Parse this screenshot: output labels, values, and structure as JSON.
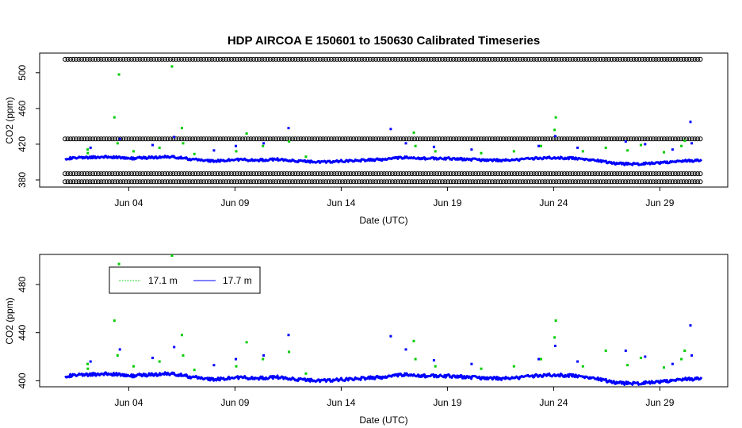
{
  "chart_data": [
    {
      "type": "scatter",
      "title": "HDP   AIRCOA  E   150601  to  150630   Calibrated Timeseries",
      "xlabel": "Date (UTC)",
      "ylabel": "CO2 (ppm)",
      "xlim": [
        "2015-06-01",
        "2015-07-01"
      ],
      "ylim": [
        372,
        522
      ],
      "x_ticks": [
        {
          "date": "2015-06-04",
          "label": "Jun 04"
        },
        {
          "date": "2015-06-09",
          "label": "Jun 09"
        },
        {
          "date": "2015-06-14",
          "label": "Jun 14"
        },
        {
          "date": "2015-06-19",
          "label": "Jun 19"
        },
        {
          "date": "2015-06-24",
          "label": "Jun 24"
        },
        {
          "date": "2015-06-29",
          "label": "Jun 29"
        }
      ],
      "y_ticks": [
        380,
        420,
        460,
        500
      ],
      "reference_bands": [
        {
          "color": "#000000",
          "y": 515
        },
        {
          "color": "#000000",
          "y": 426
        },
        {
          "color": "#000000",
          "y": 387
        },
        {
          "color": "#000000",
          "y": 378
        }
      ],
      "series": [
        {
          "color": "#00cc00",
          "points": [
            [
              "2015-06-02",
              410
            ],
            [
              "2015-06-02",
              414
            ],
            [
              "2015-06-03",
              498
            ],
            [
              "2015-06-03",
              450
            ],
            [
              "2015-06-03",
              421
            ],
            [
              "2015-06-04",
              412
            ],
            [
              "2015-06-05",
              416
            ],
            [
              "2015-06-06",
              507
            ],
            [
              "2015-06-06",
              438
            ],
            [
              "2015-06-06",
              421
            ],
            [
              "2015-06-07",
              409
            ],
            [
              "2015-06-09",
              432
            ],
            [
              "2015-06-09",
              412
            ],
            [
              "2015-06-10",
              418
            ],
            [
              "2015-06-11",
              423
            ],
            [
              "2015-06-12",
              406
            ],
            [
              "2015-06-17",
              433
            ],
            [
              "2015-06-17",
              418
            ],
            [
              "2015-06-18",
              412
            ],
            [
              "2015-06-20",
              410
            ],
            [
              "2015-06-22",
              412
            ],
            [
              "2015-06-23",
              418
            ],
            [
              "2015-06-24",
              450
            ],
            [
              "2015-06-24",
              436
            ],
            [
              "2015-06-25",
              412
            ],
            [
              "2015-06-26",
              416
            ],
            [
              "2015-06-27",
              413
            ],
            [
              "2015-06-28",
              419
            ],
            [
              "2015-06-29",
              411
            ],
            [
              "2015-06-30",
              424
            ],
            [
              "2015-06-30",
              418
            ]
          ]
        },
        {
          "color": "#0000ff",
          "points": [
            [
              "2015-06-02",
              416
            ],
            [
              "2015-06-03",
              426
            ],
            [
              "2015-06-05",
              419
            ],
            [
              "2015-06-06",
              428
            ],
            [
              "2015-06-08",
              413
            ],
            [
              "2015-06-09",
              418
            ],
            [
              "2015-06-10",
              421
            ],
            [
              "2015-06-11",
              438
            ],
            [
              "2015-06-16",
              437
            ],
            [
              "2015-06-17",
              421
            ],
            [
              "2015-06-18",
              417
            ],
            [
              "2015-06-20",
              414
            ],
            [
              "2015-06-23",
              418
            ],
            [
              "2015-06-24",
              429
            ],
            [
              "2015-06-25",
              416
            ],
            [
              "2015-06-27",
              423
            ],
            [
              "2015-06-28",
              420
            ],
            [
              "2015-06-29",
              414
            ],
            [
              "2015-06-30",
              445
            ],
            [
              "2015-06-30",
              421
            ]
          ]
        },
        {
          "color": "#0000ff",
          "baseline": [
            [
              "2015-06-01",
              404
            ],
            [
              "2015-06-02",
              405
            ],
            [
              "2015-06-03",
              406
            ],
            [
              "2015-06-04",
              404
            ],
            [
              "2015-06-05",
              405
            ],
            [
              "2015-06-06",
              406
            ],
            [
              "2015-06-07",
              403
            ],
            [
              "2015-06-08",
              401
            ],
            [
              "2015-06-09",
              403
            ],
            [
              "2015-06-10",
              402
            ],
            [
              "2015-06-11",
              403
            ],
            [
              "2015-06-12",
              401
            ],
            [
              "2015-06-13",
              400
            ],
            [
              "2015-06-14",
              401
            ],
            [
              "2015-06-15",
              402
            ],
            [
              "2015-06-16",
              403
            ],
            [
              "2015-06-17",
              405
            ],
            [
              "2015-06-18",
              404
            ],
            [
              "2015-06-19",
              404
            ],
            [
              "2015-06-20",
              403
            ],
            [
              "2015-06-21",
              402
            ],
            [
              "2015-06-22",
              402
            ],
            [
              "2015-06-23",
              404
            ],
            [
              "2015-06-24",
              405
            ],
            [
              "2015-06-25",
              404
            ],
            [
              "2015-06-26",
              402
            ],
            [
              "2015-06-27",
              398
            ],
            [
              "2015-06-28",
              398
            ],
            [
              "2015-06-29",
              399
            ],
            [
              "2015-06-30",
              401
            ],
            [
              "2015-07-01",
              402
            ]
          ]
        }
      ]
    },
    {
      "type": "scatter",
      "xlabel": "Date (UTC)",
      "ylabel": "CO2 (ppm)",
      "xlim": [
        "2015-06-01",
        "2015-07-01"
      ],
      "ylim": [
        395,
        505
      ],
      "x_ticks": [
        {
          "date": "2015-06-04",
          "label": "Jun 04"
        },
        {
          "date": "2015-06-09",
          "label": "Jun 09"
        },
        {
          "date": "2015-06-14",
          "label": "Jun 14"
        },
        {
          "date": "2015-06-19",
          "label": "Jun 19"
        },
        {
          "date": "2015-06-24",
          "label": "Jun 24"
        },
        {
          "date": "2015-06-29",
          "label": "Jun 29"
        }
      ],
      "y_ticks": [
        400,
        440,
        480
      ],
      "legend": {
        "position": "top-left",
        "entries": [
          {
            "label": "17.1 m",
            "color": "#00cc00"
          },
          {
            "label": "17.7 m",
            "color": "#0000ff"
          }
        ]
      },
      "series": [
        {
          "name": "17.1 m",
          "color": "#00cc00",
          "points": [
            [
              "2015-06-02",
              410
            ],
            [
              "2015-06-02",
              414
            ],
            [
              "2015-06-03",
              497
            ],
            [
              "2015-06-03",
              450
            ],
            [
              "2015-06-03",
              421
            ],
            [
              "2015-06-04",
              412
            ],
            [
              "2015-06-05",
              416
            ],
            [
              "2015-06-06",
              504
            ],
            [
              "2015-06-06",
              438
            ],
            [
              "2015-06-06",
              421
            ],
            [
              "2015-06-07",
              409
            ],
            [
              "2015-06-09",
              432
            ],
            [
              "2015-06-09",
              412
            ],
            [
              "2015-06-10",
              418
            ],
            [
              "2015-06-11",
              424
            ],
            [
              "2015-06-12",
              406
            ],
            [
              "2015-06-17",
              433
            ],
            [
              "2015-06-17",
              418
            ],
            [
              "2015-06-18",
              412
            ],
            [
              "2015-06-20",
              410
            ],
            [
              "2015-06-22",
              412
            ],
            [
              "2015-06-23",
              418
            ],
            [
              "2015-06-24",
              450
            ],
            [
              "2015-06-24",
              436
            ],
            [
              "2015-06-25",
              412
            ],
            [
              "2015-06-26",
              425
            ],
            [
              "2015-06-27",
              413
            ],
            [
              "2015-06-28",
              419
            ],
            [
              "2015-06-29",
              411
            ],
            [
              "2015-06-30",
              425
            ],
            [
              "2015-06-30",
              418
            ]
          ]
        },
        {
          "name": "17.7 m",
          "color": "#0000ff",
          "points": [
            [
              "2015-06-02",
              416
            ],
            [
              "2015-06-03",
              426
            ],
            [
              "2015-06-05",
              419
            ],
            [
              "2015-06-06",
              428
            ],
            [
              "2015-06-08",
              413
            ],
            [
              "2015-06-09",
              418
            ],
            [
              "2015-06-10",
              421
            ],
            [
              "2015-06-11",
              438
            ],
            [
              "2015-06-16",
              437
            ],
            [
              "2015-06-17",
              426
            ],
            [
              "2015-06-18",
              417
            ],
            [
              "2015-06-20",
              414
            ],
            [
              "2015-06-23",
              418
            ],
            [
              "2015-06-24",
              429
            ],
            [
              "2015-06-25",
              416
            ],
            [
              "2015-06-27",
              425
            ],
            [
              "2015-06-28",
              420
            ],
            [
              "2015-06-29",
              414
            ],
            [
              "2015-06-30",
              446
            ],
            [
              "2015-06-30",
              421
            ]
          ],
          "baseline": [
            [
              "2015-06-01",
              404
            ],
            [
              "2015-06-02",
              405
            ],
            [
              "2015-06-03",
              406
            ],
            [
              "2015-06-04",
              404
            ],
            [
              "2015-06-05",
              405
            ],
            [
              "2015-06-06",
              406
            ],
            [
              "2015-06-07",
              403
            ],
            [
              "2015-06-08",
              401
            ],
            [
              "2015-06-09",
              403
            ],
            [
              "2015-06-10",
              402
            ],
            [
              "2015-06-11",
              403
            ],
            [
              "2015-06-12",
              401
            ],
            [
              "2015-06-13",
              400
            ],
            [
              "2015-06-14",
              401
            ],
            [
              "2015-06-15",
              402
            ],
            [
              "2015-06-16",
              403
            ],
            [
              "2015-06-17",
              405
            ],
            [
              "2015-06-18",
              404
            ],
            [
              "2015-06-19",
              404
            ],
            [
              "2015-06-20",
              403
            ],
            [
              "2015-06-21",
              402
            ],
            [
              "2015-06-22",
              402
            ],
            [
              "2015-06-23",
              404
            ],
            [
              "2015-06-24",
              405
            ],
            [
              "2015-06-25",
              404
            ],
            [
              "2015-06-26",
              402
            ],
            [
              "2015-06-27",
              398
            ],
            [
              "2015-06-28",
              398
            ],
            [
              "2015-06-29",
              399
            ],
            [
              "2015-06-30",
              401
            ],
            [
              "2015-07-01",
              402
            ]
          ]
        }
      ]
    }
  ]
}
